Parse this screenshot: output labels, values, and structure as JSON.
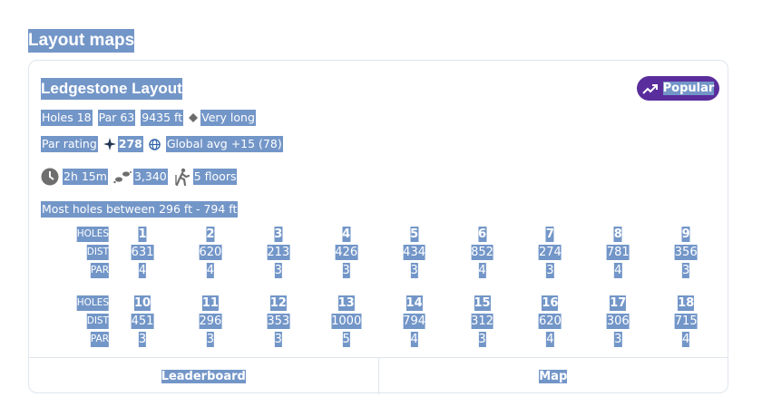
{
  "section_title": "Layout maps",
  "card": {
    "title": "Ledgestone Layout",
    "badge": "Popular",
    "stats_row_1": [
      "Holes 18",
      "Par 63",
      "9435 ft",
      "Very long"
    ],
    "par_rating_label": "Par rating",
    "par_rating": "278",
    "global_avg": "Global avg +15 (78)",
    "duration": "2h 15m",
    "steps": "3,340",
    "floors": "5 floors",
    "hole_range": "Most holes between 296 ft - 794 ft",
    "table": {
      "row_labels": [
        "HOLES",
        "DIST",
        "PAR"
      ],
      "groups": [
        {
          "holes": [
            1,
            2,
            3,
            4,
            5,
            6,
            7,
            8,
            9
          ],
          "dist": [
            631,
            620,
            213,
            426,
            434,
            852,
            274,
            781,
            356
          ],
          "par": [
            4,
            4,
            3,
            3,
            3,
            4,
            3,
            4,
            3
          ]
        },
        {
          "holes": [
            10,
            11,
            12,
            13,
            14,
            15,
            16,
            17,
            18
          ],
          "dist": [
            451,
            296,
            353,
            1000,
            794,
            312,
            620,
            306,
            715
          ],
          "par": [
            3,
            3,
            3,
            5,
            4,
            3,
            4,
            3,
            4
          ]
        }
      ]
    },
    "buttons": [
      "Leaderboard",
      "Map"
    ]
  }
}
